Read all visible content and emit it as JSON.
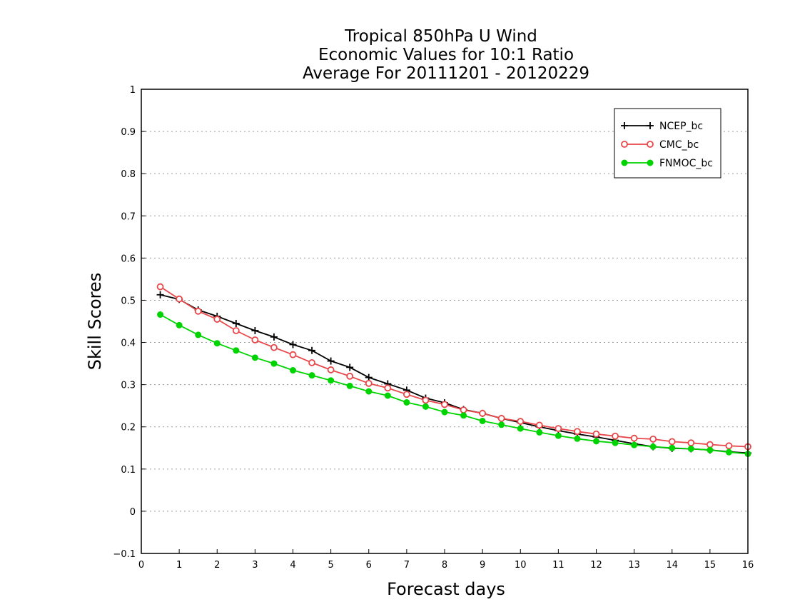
{
  "chart_data": {
    "type": "line",
    "title_lines": [
      "Tropical 850hPa U Wind",
      "Economic Values for 10:1 Ratio",
      "Average For 20111201 - 20120229"
    ],
    "xlabel": "Forecast days",
    "ylabel": "Skill Scores",
    "xlim": [
      0,
      16
    ],
    "ylim": [
      -0.1,
      1
    ],
    "xticks": [
      "0",
      "1",
      "2",
      "3",
      "4",
      "5",
      "6",
      "7",
      "8",
      "9",
      "10",
      "11",
      "12",
      "13",
      "14",
      "15",
      "16"
    ],
    "yticks": [
      "1",
      "0.9",
      "0.8",
      "0.7",
      "0.6",
      "0.5",
      "0.4",
      "0.3",
      "0.2",
      "0.1",
      "0",
      "−0.1"
    ],
    "grid": "horizontal dotted",
    "legend_position": "top-right",
    "x": [
      0.5,
      1,
      1.5,
      2,
      2.5,
      3,
      3.5,
      4,
      4.5,
      5,
      5.5,
      6,
      6.5,
      7,
      7.5,
      8,
      8.5,
      9,
      9.5,
      10,
      10.5,
      11,
      11.5,
      12,
      12.5,
      13,
      13.5,
      14,
      14.5,
      15,
      15.5,
      16
    ],
    "series": [
      {
        "name": "NCEP_bc",
        "color": "#000000",
        "marker": "plus",
        "values": [
          0.513,
          0.502,
          0.477,
          0.462,
          0.445,
          0.428,
          0.413,
          0.395,
          0.381,
          0.356,
          0.341,
          0.317,
          0.302,
          0.287,
          0.268,
          0.257,
          0.241,
          0.232,
          0.22,
          0.21,
          0.2,
          0.191,
          0.183,
          0.176,
          0.168,
          0.16,
          0.153,
          0.149,
          0.148,
          0.145,
          0.141,
          0.138
        ]
      },
      {
        "name": "CMC_bc",
        "color": "#e8474a",
        "marker": "open-circle",
        "values": [
          0.532,
          0.503,
          0.474,
          0.455,
          0.428,
          0.406,
          0.388,
          0.371,
          0.352,
          0.335,
          0.32,
          0.303,
          0.292,
          0.277,
          0.263,
          0.253,
          0.24,
          0.232,
          0.22,
          0.213,
          0.204,
          0.196,
          0.189,
          0.183,
          0.178,
          0.173,
          0.171,
          0.165,
          0.162,
          0.158,
          0.155,
          0.153
        ]
      },
      {
        "name": "FNMOC_bc",
        "color": "#00d400",
        "marker": "filled-circle",
        "values": [
          0.466,
          0.441,
          0.418,
          0.398,
          0.381,
          0.364,
          0.35,
          0.334,
          0.322,
          0.31,
          0.297,
          0.284,
          0.274,
          0.258,
          0.248,
          0.235,
          0.227,
          0.214,
          0.205,
          0.196,
          0.187,
          0.179,
          0.172,
          0.166,
          0.162,
          0.157,
          0.153,
          0.15,
          0.148,
          0.145,
          0.14,
          0.136
        ]
      }
    ]
  }
}
